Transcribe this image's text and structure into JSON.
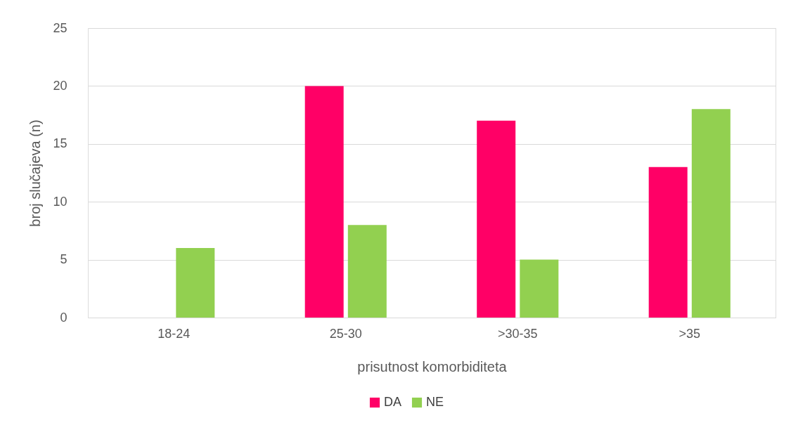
{
  "chart_data": {
    "type": "bar",
    "xlabel": "prisutnost komorbiditeta",
    "ylabel": "broj slučajeva (n)",
    "categories": [
      "18-24",
      "25-30",
      ">30-35",
      ">35"
    ],
    "series": [
      {
        "name": "DA",
        "color": "#ff0066",
        "values": [
          0,
          20,
          17,
          13
        ]
      },
      {
        "name": "NE",
        "color": "#92d050",
        "values": [
          6,
          8,
          5,
          18
        ]
      }
    ],
    "ylim": [
      0,
      25
    ],
    "yticks": [
      0,
      5,
      10,
      15,
      20,
      25
    ],
    "grid": "y",
    "legend": "bottom"
  }
}
